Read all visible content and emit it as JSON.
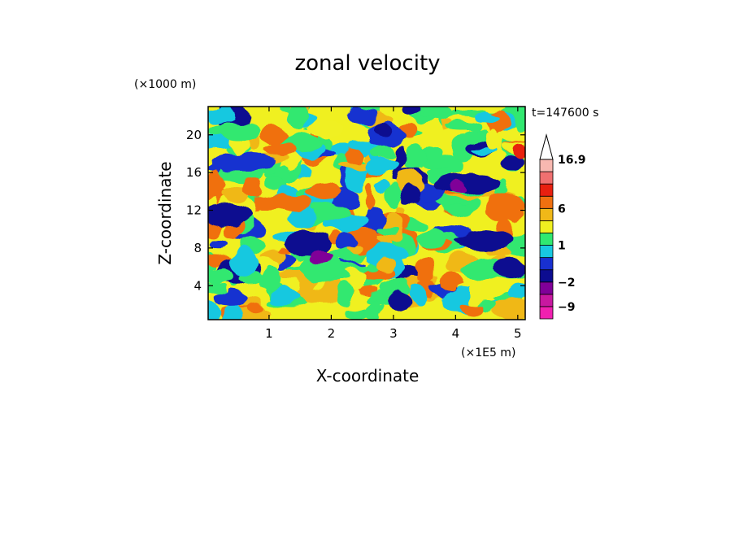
{
  "chart_data": {
    "type": "heatmap",
    "title": "zonal velocity",
    "xlabel": "X-coordinate",
    "ylabel": "Z-coordinate",
    "x_multiplier": "(×1E5 m)",
    "y_multiplier": "(×1000 m)",
    "time_label": "t=147600 s",
    "xlim": [
      0.02,
      5.12
    ],
    "ylim": [
      0.4,
      23
    ],
    "x_ticks": [
      1,
      2,
      3,
      4,
      5
    ],
    "x_tick_labels": [
      "1",
      "2",
      "3",
      "4",
      "5"
    ],
    "y_ticks": [
      4,
      8,
      12,
      16,
      20
    ],
    "y_tick_labels": [
      "4",
      "8",
      "12",
      "16",
      "20"
    ],
    "colorbar": {
      "levels": [
        -12,
        -9,
        -6,
        -2,
        -1,
        0,
        1,
        2,
        4,
        6,
        9,
        12,
        16.9
      ],
      "colors": [
        "#f020b0",
        "#c818a0",
        "#800098",
        "#0c0c90",
        "#1830d0",
        "#18c8e0",
        "#30e870",
        "#f0f020",
        "#f0b818",
        "#f07010",
        "#e82010",
        "#f07070",
        "#f8b8b0"
      ],
      "tick_labels": [
        "16.9",
        "6",
        "1",
        "−2",
        "−9"
      ],
      "tick_values": [
        16.9,
        6,
        1,
        -2,
        -9
      ],
      "extend": "max"
    },
    "grid": false
  }
}
